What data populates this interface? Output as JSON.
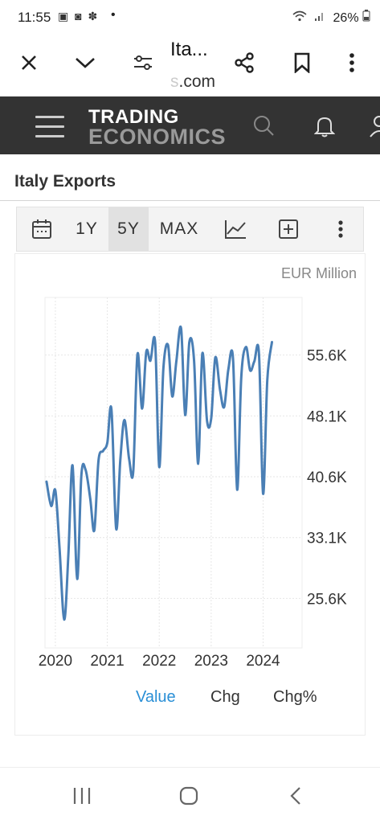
{
  "status": {
    "time": "11:55",
    "notif_icons": [
      "image-icon",
      "instagram-icon",
      "flower-icon"
    ],
    "battery": "26%",
    "wifi_icon": "wifi-icon",
    "signal_icon": "signal-icon",
    "battery_icon": "battery-icon"
  },
  "browser": {
    "title": "Ita...",
    "url_faded": "s",
    "url": ".com",
    "icons": [
      "close-icon",
      "chevron-down-icon",
      "page-settings-icon",
      "share-icon",
      "bookmark-icon",
      "more-vertical-icon"
    ]
  },
  "site": {
    "logo_line1": "TRADING",
    "logo_line2": "ECONOMICS",
    "icons": [
      "menu-icon",
      "search-icon",
      "bell-icon",
      "user-icon"
    ]
  },
  "page": {
    "title": "Italy Exports"
  },
  "chart_toolbar": {
    "calendar_icon": "calendar-icon",
    "ranges": [
      "1Y",
      "5Y",
      "MAX"
    ],
    "active_range": "5Y",
    "chart_type_icon": "line-chart-icon",
    "add_icon": "add-indicator-icon",
    "more_icon": "more-vertical-icon"
  },
  "chart_data": {
    "type": "line",
    "unit": "EUR Million",
    "x_ticks": [
      "2020",
      "2021",
      "2022",
      "2023",
      "2024"
    ],
    "y_ticks": [
      "25.6K",
      "33.1K",
      "40.6K",
      "48.1K",
      "55.6K"
    ],
    "y_tick_values": [
      25600,
      33100,
      40600,
      48100,
      55600
    ],
    "ylim": [
      19500,
      62700
    ],
    "xlim": [
      2019.8,
      2024.75
    ],
    "grid": true,
    "series": [
      {
        "values": [
          [
            2019.83,
            40000
          ],
          [
            2019.92,
            37000
          ],
          [
            2020.0,
            38900
          ],
          [
            2020.08,
            31800
          ],
          [
            2020.17,
            23000
          ],
          [
            2020.25,
            31000
          ],
          [
            2020.33,
            42000
          ],
          [
            2020.42,
            28000
          ],
          [
            2020.5,
            40800
          ],
          [
            2020.58,
            41500
          ],
          [
            2020.67,
            38000
          ],
          [
            2020.75,
            34000
          ],
          [
            2020.83,
            42600
          ],
          [
            2020.92,
            43800
          ],
          [
            2021.0,
            44800
          ],
          [
            2021.08,
            48900
          ],
          [
            2021.17,
            34200
          ],
          [
            2021.25,
            42600
          ],
          [
            2021.33,
            47600
          ],
          [
            2021.42,
            42800
          ],
          [
            2021.5,
            41300
          ],
          [
            2021.58,
            55700
          ],
          [
            2021.67,
            49000
          ],
          [
            2021.75,
            56000
          ],
          [
            2021.83,
            54900
          ],
          [
            2021.92,
            57200
          ],
          [
            2022.0,
            41800
          ],
          [
            2022.08,
            54000
          ],
          [
            2022.17,
            56800
          ],
          [
            2022.25,
            50500
          ],
          [
            2022.33,
            54900
          ],
          [
            2022.42,
            58900
          ],
          [
            2022.5,
            48200
          ],
          [
            2022.58,
            57200
          ],
          [
            2022.67,
            55000
          ],
          [
            2022.75,
            42200
          ],
          [
            2022.83,
            55800
          ],
          [
            2022.92,
            47500
          ],
          [
            2023.0,
            47800
          ],
          [
            2023.08,
            55300
          ],
          [
            2023.17,
            51300
          ],
          [
            2023.25,
            49200
          ],
          [
            2023.33,
            53800
          ],
          [
            2023.42,
            55200
          ],
          [
            2023.5,
            39000
          ],
          [
            2023.58,
            53000
          ],
          [
            2023.67,
            56600
          ],
          [
            2023.75,
            53700
          ],
          [
            2023.83,
            54800
          ],
          [
            2023.92,
            55800
          ],
          [
            2024.0,
            38500
          ],
          [
            2024.08,
            52500
          ],
          [
            2024.17,
            57200
          ]
        ]
      }
    ],
    "legend": [
      "Value",
      "Chg",
      "Chg%"
    ],
    "legend_active": "Value",
    "line_color": "#4a7fb5"
  },
  "nav": {
    "icons": [
      "recents-icon",
      "home-icon",
      "back-icon"
    ]
  }
}
